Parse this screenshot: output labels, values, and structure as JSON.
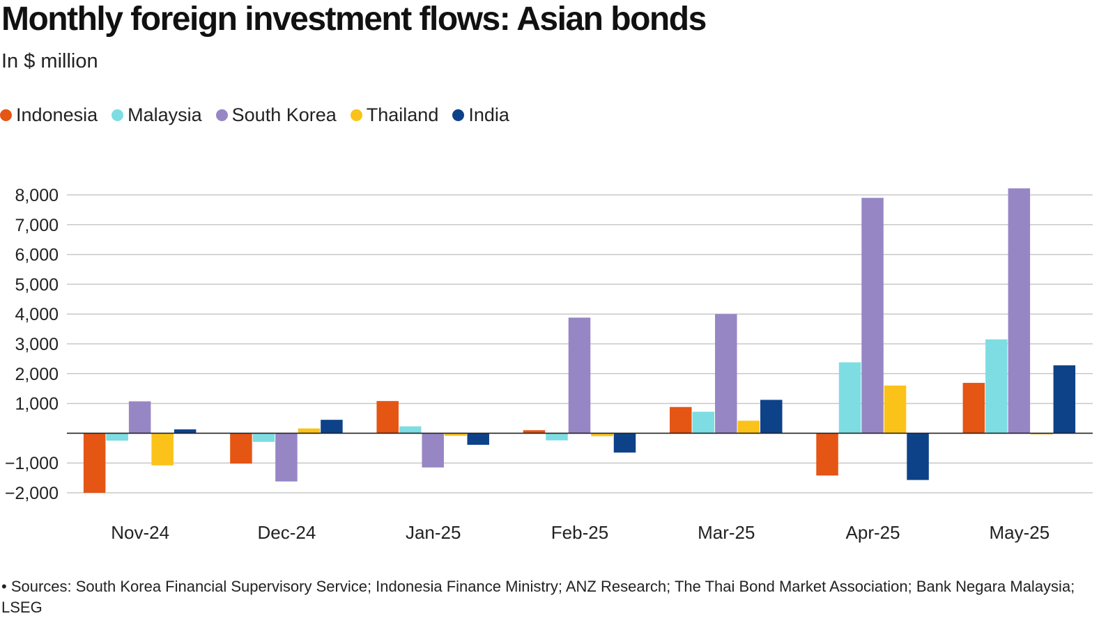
{
  "chart_data": {
    "type": "bar",
    "title": "Monthly foreign investment flows: Asian bonds",
    "subtitle": "In $ million",
    "categories": [
      "Nov-24",
      "Dec-24",
      "Jan-25",
      "Feb-25",
      "Mar-25",
      "Apr-25",
      "May-25"
    ],
    "series": [
      {
        "name": "Indonesia",
        "color": "#E55514",
        "values": [
          -2000,
          -1020,
          1080,
          100,
          880,
          -1420,
          1690
        ]
      },
      {
        "name": "Malaysia",
        "color": "#7DDDE2",
        "values": [
          -250,
          -290,
          230,
          -240,
          720,
          2380,
          3150
        ]
      },
      {
        "name": "South Korea",
        "color": "#9786C4",
        "values": [
          1070,
          -1620,
          -1150,
          3880,
          4000,
          7900,
          8220
        ]
      },
      {
        "name": "Thailand",
        "color": "#FBC21A",
        "values": [
          -1080,
          160,
          -90,
          -100,
          420,
          1600,
          -40
        ]
      },
      {
        "name": "India",
        "color": "#0E4288",
        "values": [
          130,
          450,
          -390,
          -650,
          1120,
          -1570,
          2280
        ]
      }
    ],
    "yticks": [
      8000,
      7000,
      6000,
      5000,
      4000,
      3000,
      2000,
      1000,
      -1000,
      -2000
    ],
    "ytick_labels": [
      "8,000",
      "7,000",
      "6,000",
      "5,000",
      "4,000",
      "3,000",
      "2,000",
      "1,000",
      "−1,000",
      "−2,000"
    ],
    "ylim": [
      -2000,
      8000
    ],
    "xlabel": "",
    "ylabel": "",
    "grid": true,
    "legend_position": "top-left"
  },
  "source_note": "• Sources: South Korea Financial Supervisory Service; Indonesia Finance Ministry; ANZ Research; The Thai Bond Market Association; Bank Negara Malaysia; LSEG"
}
